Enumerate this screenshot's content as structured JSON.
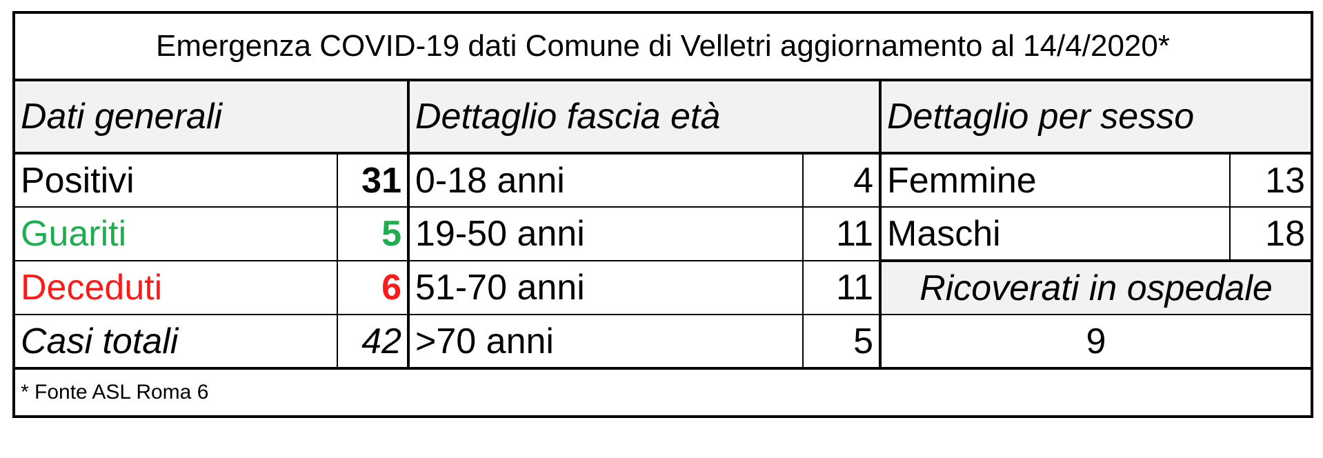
{
  "title": "Emergenza COVID-19 dati Comune di Velletri aggiornamento al 14/4/2020*",
  "sections": {
    "general": "Dati generali",
    "age": "Dettaglio fascia età",
    "sex": "Dettaglio per sesso"
  },
  "general": [
    {
      "label": "Positivi",
      "value": "31"
    },
    {
      "label": "Guariti",
      "value": "5"
    },
    {
      "label": "Deceduti",
      "value": "6"
    },
    {
      "label": "Casi totali",
      "value": "42"
    }
  ],
  "age": [
    {
      "label": "0-18 anni",
      "value": "4"
    },
    {
      "label": "19-50 anni",
      "value": "11"
    },
    {
      "label": "51-70 anni",
      "value": "11"
    },
    {
      "label": ">70 anni",
      "value": "5"
    }
  ],
  "sex": [
    {
      "label": "Femmine",
      "value": "13"
    },
    {
      "label": "Maschi",
      "value": "18"
    }
  ],
  "hospital": {
    "label": "Ricoverati in ospedale",
    "value": "9"
  },
  "footer": "* Fonte ASL Roma 6",
  "colors": {
    "guariti": "#1fae4f",
    "deceduti": "#ff1a1a",
    "header_bg": "#f2f2f2"
  }
}
